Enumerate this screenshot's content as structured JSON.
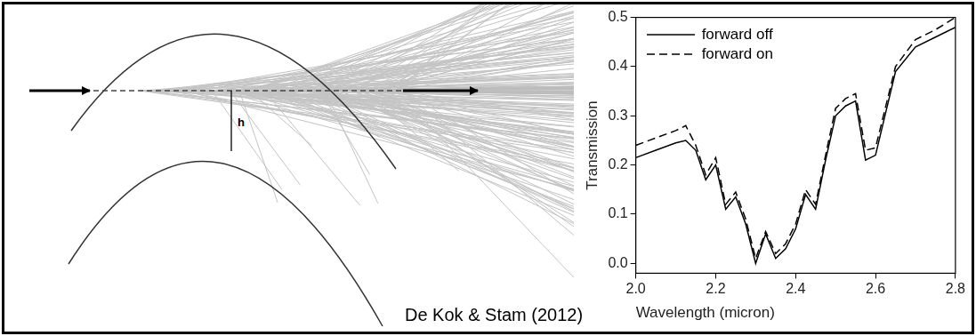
{
  "chart_data": {
    "type": "line",
    "x_label": "Wavelength (micron)",
    "y_label": "Transmission",
    "x": [
      2.0,
      2.05,
      2.1,
      2.125,
      2.15,
      2.175,
      2.2,
      2.225,
      2.25,
      2.275,
      2.3,
      2.325,
      2.35,
      2.375,
      2.4,
      2.425,
      2.45,
      2.475,
      2.5,
      2.525,
      2.55,
      2.575,
      2.6,
      2.65,
      2.7,
      2.75,
      2.8
    ],
    "series": [
      {
        "name": "forward off",
        "color": "#000000",
        "line_style": "solid",
        "values": [
          0.215,
          0.23,
          0.245,
          0.25,
          0.23,
          0.17,
          0.2,
          0.11,
          0.135,
          0.08,
          0.0,
          0.06,
          0.01,
          0.03,
          0.07,
          0.14,
          0.11,
          0.21,
          0.3,
          0.32,
          0.33,
          0.21,
          0.22,
          0.39,
          0.44,
          0.46,
          0.48
        ]
      },
      {
        "name": "forward on",
        "color": "#000000",
        "line_style": "dashed",
        "values": [
          0.24,
          0.255,
          0.27,
          0.28,
          0.24,
          0.18,
          0.215,
          0.12,
          0.145,
          0.09,
          0.01,
          0.065,
          0.02,
          0.04,
          0.08,
          0.15,
          0.12,
          0.22,
          0.315,
          0.335,
          0.345,
          0.23,
          0.235,
          0.4,
          0.455,
          0.475,
          0.5
        ]
      }
    ],
    "xlim": [
      2.0,
      2.8
    ],
    "xticks": [
      {
        "value": 2.0,
        "label": "2.0"
      },
      2.2,
      2.4,
      2.6,
      2.8
    ],
    "ylim": [
      -0.02,
      0.5
    ],
    "yticks": [
      {
        "value": 0,
        "label": "0.0"
      },
      0.1,
      0.2,
      0.3,
      0.4,
      0.5
    ],
    "grid": false,
    "legend": "upper left"
  },
  "caption": "De Kok & Stam (2012)",
  "diagram": {
    "label": "h"
  }
}
